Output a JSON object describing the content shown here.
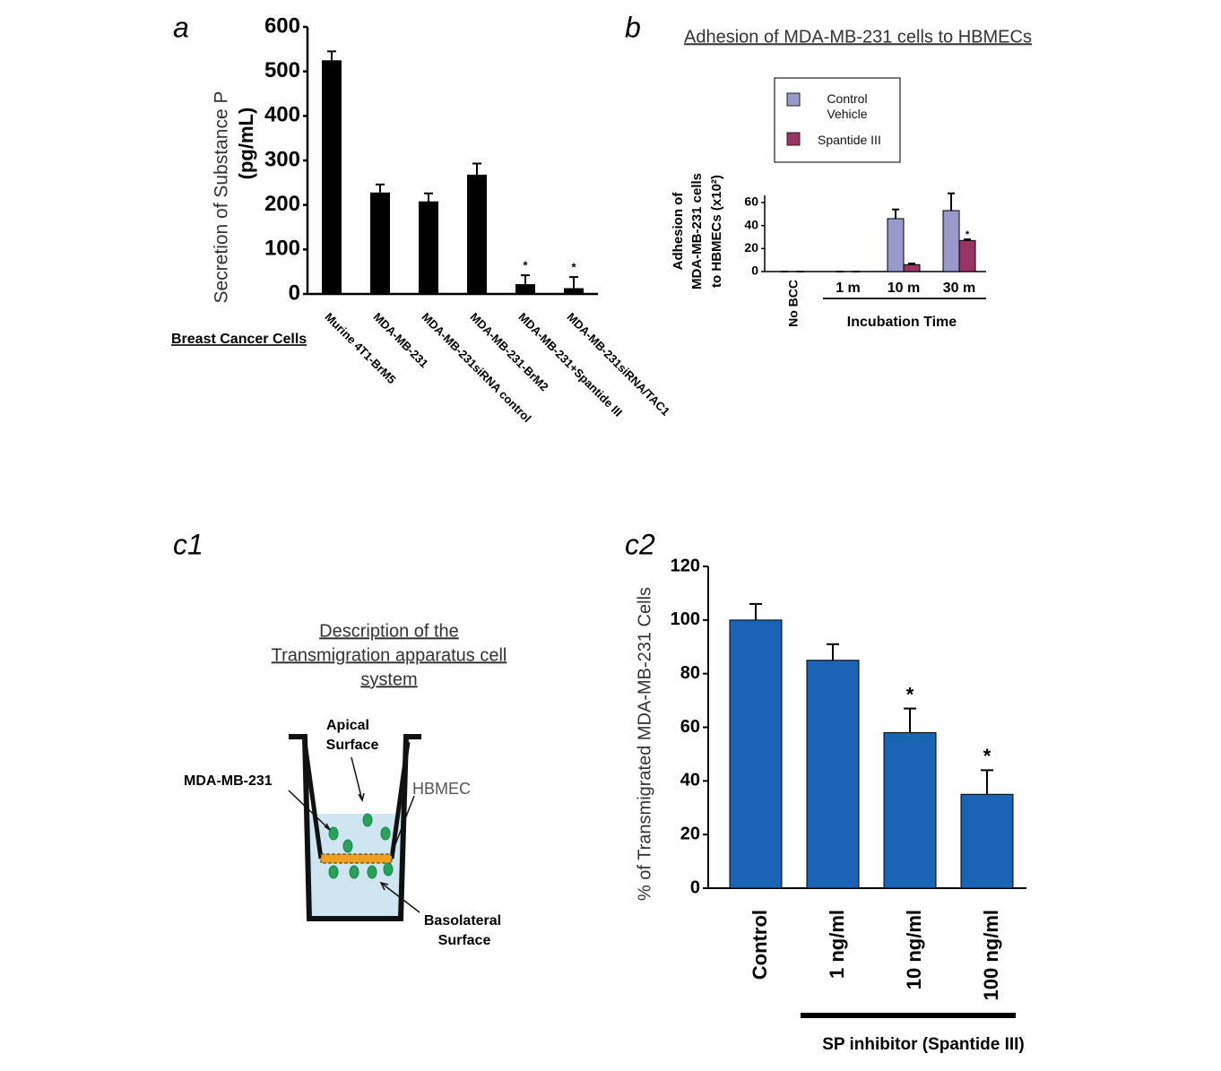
{
  "chart_data": [
    {
      "type": "bar",
      "panel": "a",
      "ylabel": [
        "Secretion of Substance P",
        "(pg/mL)"
      ],
      "xlabel": "Breast Cancer Cells",
      "categories": [
        "Murine 4T1-BrM5",
        "MDA-MB-231",
        "MDA-MB-231siRNA control",
        "MDA-MB-231-BrM2",
        "MDA-MB-231+Spantide III",
        "MDA-MB-231siRNA/TAC1"
      ],
      "series": [
        {
          "color": "#000000",
          "values": [
            525,
            228,
            208,
            268,
            22,
            13
          ],
          "errors": [
            20,
            18,
            18,
            25,
            20,
            25
          ],
          "significance": [
            null,
            null,
            null,
            null,
            "*",
            "*"
          ]
        }
      ],
      "ylim": [
        0,
        600
      ],
      "yticks": [
        0,
        100,
        200,
        300,
        400,
        500,
        600
      ]
    },
    {
      "type": "bar",
      "panel": "b",
      "title": "Adhesion of MDA-MB-231 cells to HBMECs",
      "ylabel": [
        "Adhesion of",
        "MDA-MB-231 cells",
        "to HBMECs (x10²)"
      ],
      "xlabel": "Incubation Time",
      "categories": [
        "No BCC",
        "1 m",
        "10 m",
        "30 m"
      ],
      "series": [
        {
          "name": "Control Vehicle",
          "color": "#9999cc",
          "values": [
            0,
            0,
            46,
            53
          ],
          "errors": [
            0,
            0,
            8,
            15
          ],
          "significance": [
            null,
            null,
            null,
            null
          ]
        },
        {
          "name": "Spantide III",
          "color": "#993366",
          "values": [
            0,
            0,
            6,
            27
          ],
          "errors": [
            0,
            0,
            1,
            1
          ],
          "significance": [
            null,
            null,
            null,
            "*"
          ]
        }
      ],
      "ylim": [
        0,
        70
      ],
      "yticks": [
        0,
        20,
        40,
        60
      ]
    },
    {
      "type": "bar",
      "panel": "c2",
      "ylabel": [
        "% of Transmigrated MDA-MB-231 Cells"
      ],
      "xlabel": "SP inhibitor (Spantide III)",
      "categories": [
        "Control",
        "1 ng/ml",
        "10 ng/ml",
        "100 ng/ml"
      ],
      "series": [
        {
          "color": "#1a63b5",
          "values": [
            100,
            85,
            58,
            35
          ],
          "errors": [
            6,
            6,
            9,
            9
          ],
          "significance": [
            null,
            null,
            "*",
            "*"
          ]
        }
      ],
      "ylim": [
        0,
        120
      ],
      "yticks": [
        0,
        20,
        40,
        60,
        80,
        100,
        120
      ]
    }
  ],
  "diagram": {
    "panel": "c1",
    "title": [
      "Description of the",
      "Transmigration apparatus cell",
      "system"
    ],
    "apical": [
      "Apical",
      "Surface"
    ],
    "cells": "MDA-MB-231",
    "membrane": "HBMEC",
    "basolateral": [
      "Basolateral",
      "Surface"
    ]
  }
}
